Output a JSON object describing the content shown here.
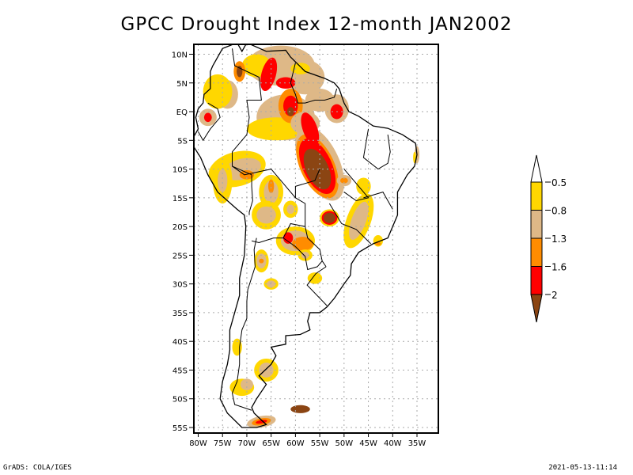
{
  "title": "GPCC Drought Index 12-month JAN2002",
  "footer": {
    "left": "GrADS: COLA/IGES",
    "right": "2021-05-13-11:14"
  },
  "map": {
    "region": "South America",
    "lon_range": [
      -81,
      -32
    ],
    "lat_range": [
      -56,
      12
    ],
    "lat_ticks": [
      {
        "value": 10,
        "label": "10N"
      },
      {
        "value": 5,
        "label": "5N"
      },
      {
        "value": 0,
        "label": "EQ"
      },
      {
        "value": -5,
        "label": "5S"
      },
      {
        "value": -10,
        "label": "10S"
      },
      {
        "value": -15,
        "label": "15S"
      },
      {
        "value": -20,
        "label": "20S"
      },
      {
        "value": -25,
        "label": "25S"
      },
      {
        "value": -30,
        "label": "30S"
      },
      {
        "value": -35,
        "label": "35S"
      },
      {
        "value": -40,
        "label": "40S"
      },
      {
        "value": -45,
        "label": "45S"
      },
      {
        "value": -50,
        "label": "50S"
      },
      {
        "value": -55,
        "label": "55S"
      }
    ],
    "lon_ticks": [
      {
        "value": -80,
        "label": "80W"
      },
      {
        "value": -75,
        "label": "75W"
      },
      {
        "value": -70,
        "label": "70W"
      },
      {
        "value": -65,
        "label": "65W"
      },
      {
        "value": -60,
        "label": "60W"
      },
      {
        "value": -55,
        "label": "55W"
      },
      {
        "value": -50,
        "label": "50W"
      },
      {
        "value": -45,
        "label": "45W"
      },
      {
        "value": -40,
        "label": "40W"
      },
      {
        "value": -35,
        "label": "35W"
      }
    ],
    "grid": "dotted"
  },
  "legend": {
    "placement": "right",
    "labels": [
      "-0.5",
      "-0.8",
      "-1.3",
      "-1.6",
      "-2"
    ],
    "colors": {
      "above": "#ffffff",
      "c1": "#ffd700",
      "c2": "#deb887",
      "c3": "#ff8c00",
      "c4": "#ff0000",
      "c5": "#8b4513"
    },
    "bins": [
      {
        "range": "> -0.5",
        "color": "#ffffff"
      },
      {
        "range": "-0.5 to -0.8",
        "color": "#ffd700"
      },
      {
        "range": "-0.8 to -1.3",
        "color": "#deb887"
      },
      {
        "range": "-1.3 to -1.6",
        "color": "#ff8c00"
      },
      {
        "range": "-1.6 to -2",
        "color": "#ff0000"
      },
      {
        "range": "< -2",
        "color": "#8b4513"
      }
    ]
  },
  "regions": [
    {
      "name": "central-brazil-core",
      "lon": -55.5,
      "lat": -10,
      "level": -2
    },
    {
      "name": "venezuela-north",
      "lon": -65.5,
      "lat": 6,
      "level": -1.6
    },
    {
      "name": "amazon-north",
      "lon": -61,
      "lat": 1,
      "level": -2
    },
    {
      "name": "amapa-para",
      "lon": -51.5,
      "lat": 0,
      "level": -1.6
    },
    {
      "name": "ecuador",
      "lon": -78,
      "lat": -1,
      "level": -1.6
    },
    {
      "name": "paraguay",
      "lon": -59,
      "lat": -22.5,
      "level": -1.6
    },
    {
      "name": "mato-grosso-sul",
      "lon": -53,
      "lat": -18.5,
      "level": -2
    },
    {
      "name": "falklands",
      "lon": -59,
      "lat": -51.8,
      "level": -2
    },
    {
      "name": "tierra-del-fuego",
      "lon": -67,
      "lat": -54,
      "level": -1.6
    }
  ]
}
